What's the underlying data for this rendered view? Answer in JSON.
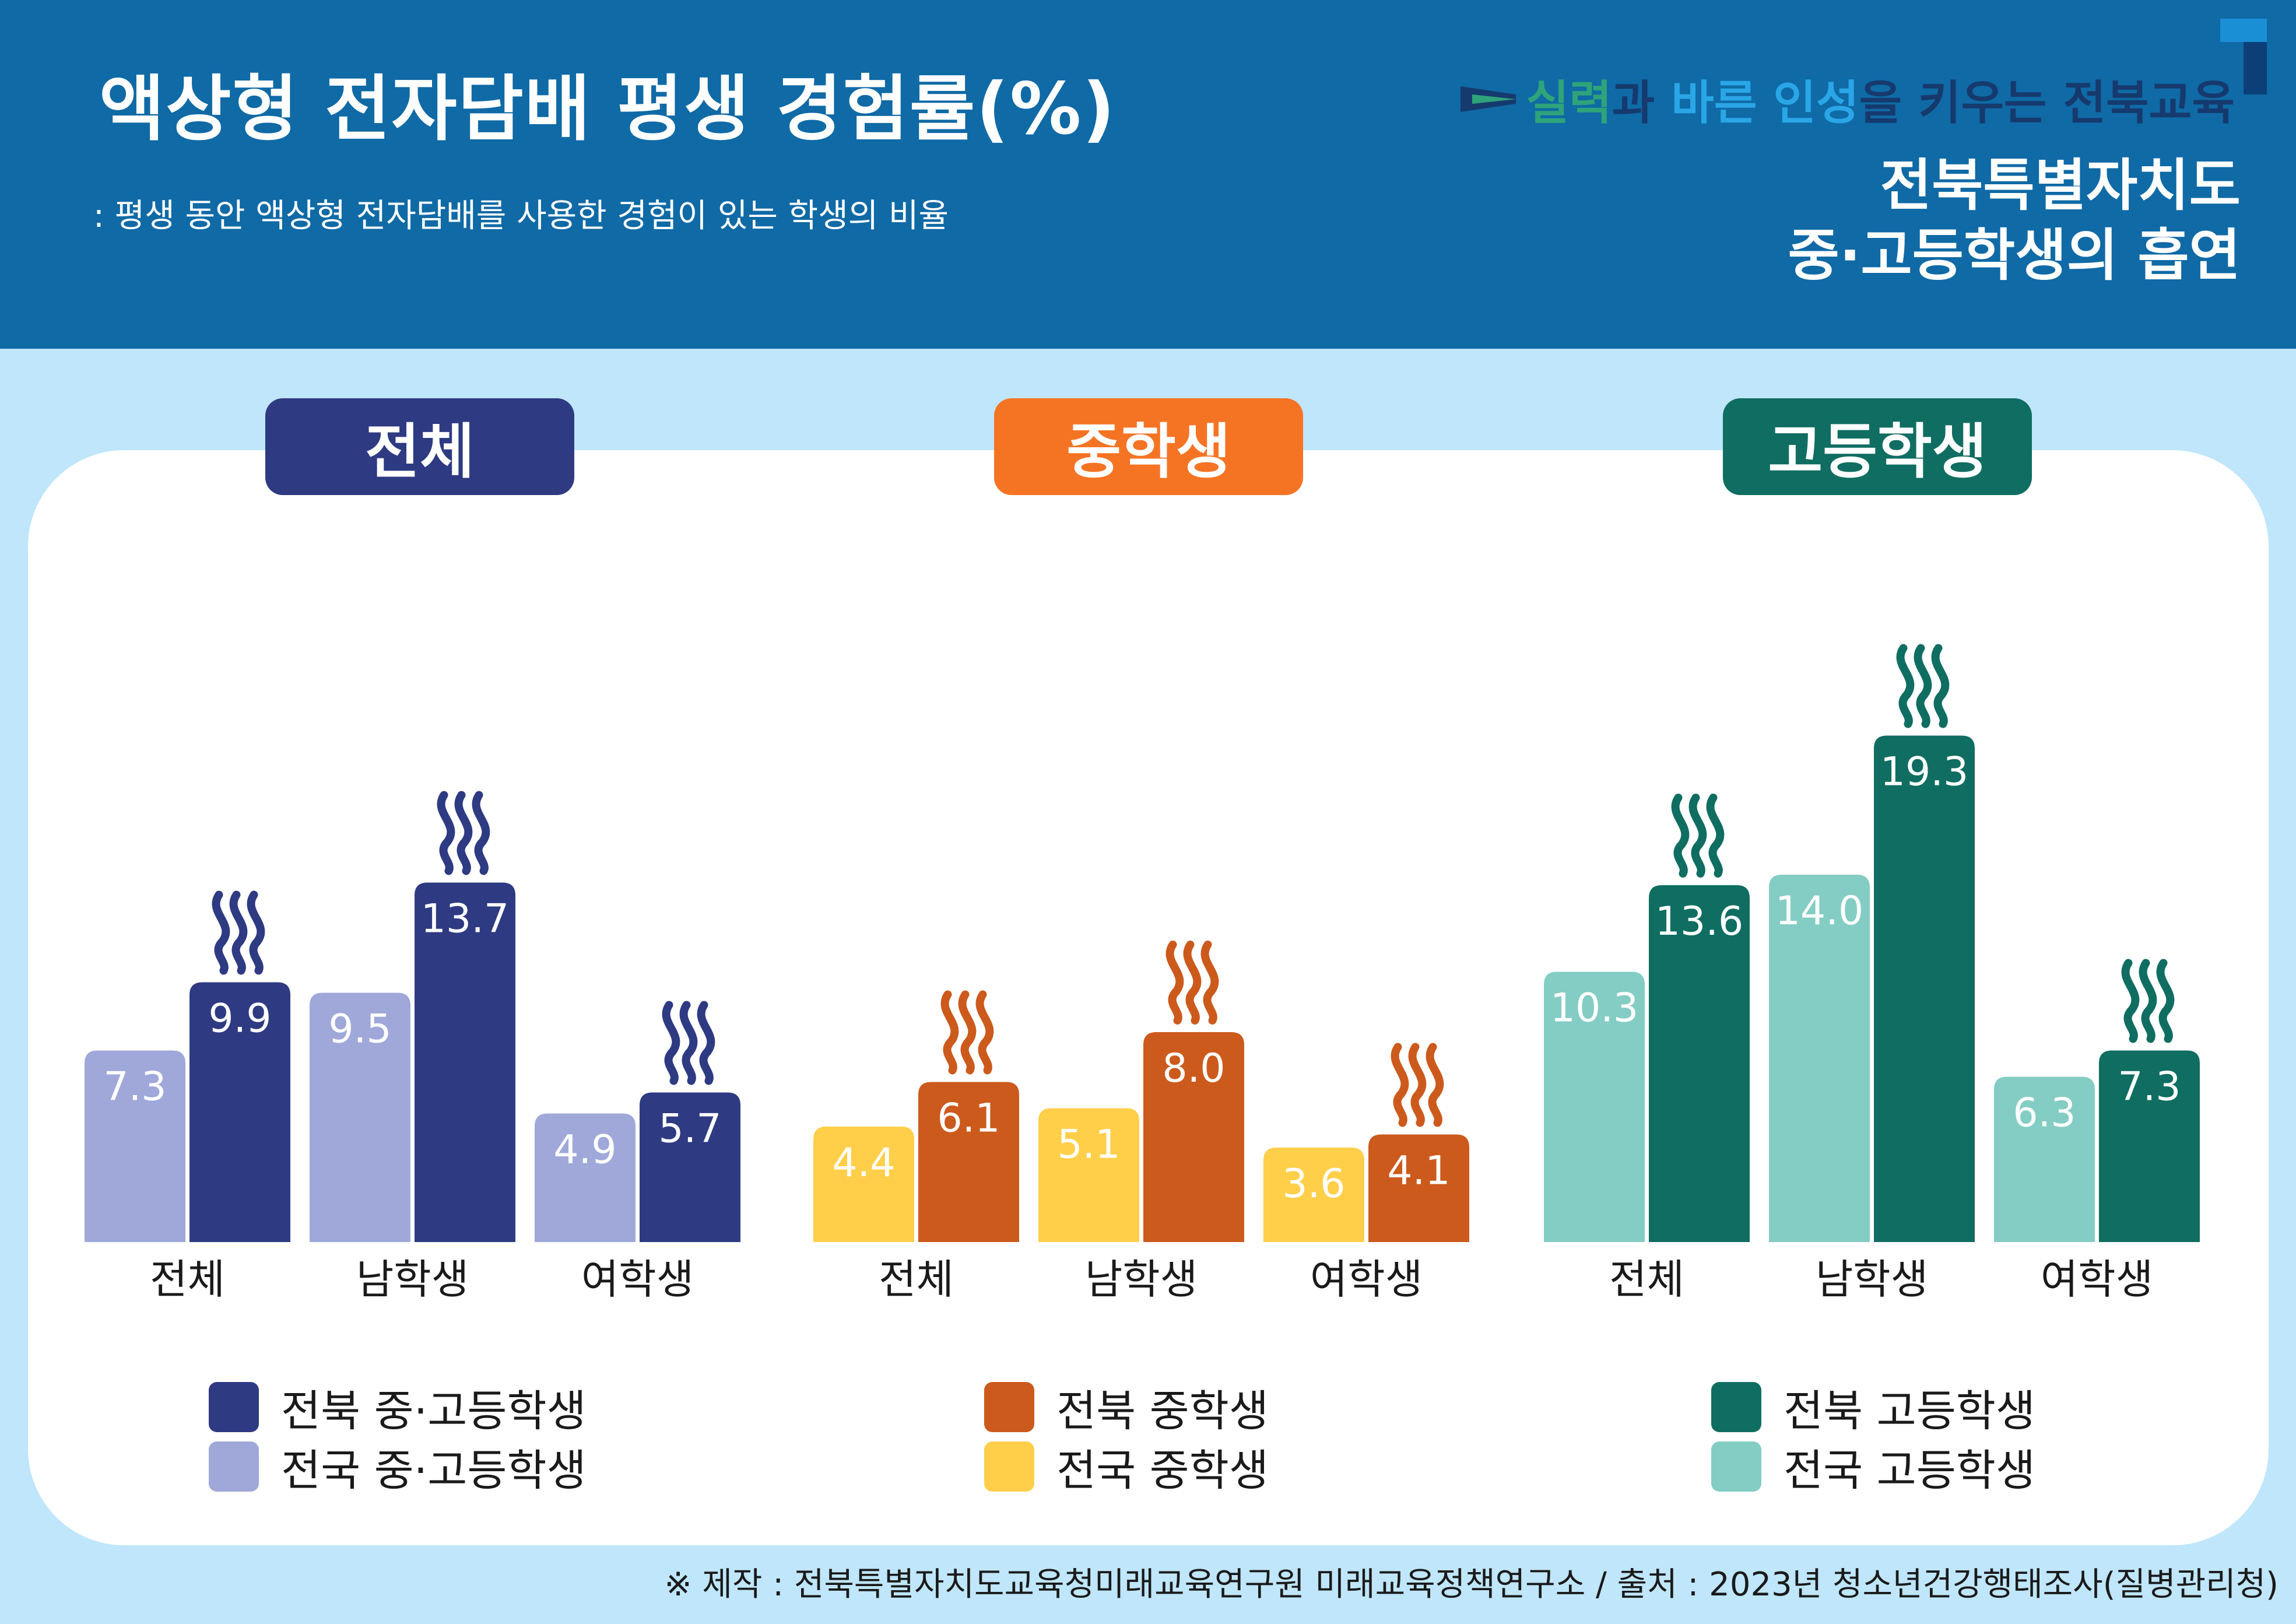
{
  "header": {
    "title": "액상형 전자담배 평생 경험률(%)",
    "subtitle": ": 평생 동안 액상형 전자담배를 사용한 경험이 있는 학생의 비율",
    "slogan": {
      "part1": "실력",
      "part2": "과 ",
      "part3": "바른 인성",
      "part4": "을 키우는 전북교육"
    },
    "org_line1": "전북특별자치도",
    "org_line2": "중·고등학생의 흡연"
  },
  "colors": {
    "header_bg": "#0f6aa6",
    "page_bg": "#bfe6fb",
    "total_jeonbuk": "#2e3a82",
    "total_national": "#9fa8d9",
    "middle_jeonbuk": "#cc5a1c",
    "middle_national": "#ffcf4a",
    "high_jeonbuk": "#106d61",
    "high_national": "#84cdc4"
  },
  "chart_data": [
    {
      "type": "bar",
      "title": "전체",
      "categories": [
        "전체",
        "남학생",
        "여학생"
      ],
      "series": [
        {
          "name": "전국 중·고등학생",
          "values": [
            7.3,
            9.5,
            4.9
          ],
          "color": "#9fa8d9"
        },
        {
          "name": "전북 중·고등학생",
          "values": [
            9.9,
            13.7,
            5.7
          ],
          "color": "#2e3a82"
        }
      ],
      "ylim": [
        0,
        20
      ],
      "grid": false,
      "legend": "bottom"
    },
    {
      "type": "bar",
      "title": "중학생",
      "categories": [
        "전체",
        "남학생",
        "여학생"
      ],
      "series": [
        {
          "name": "전국 중학생",
          "values": [
            4.4,
            5.1,
            3.6
          ],
          "color": "#ffcf4a"
        },
        {
          "name": "전북 중학생",
          "values": [
            6.1,
            8.0,
            4.1
          ],
          "color": "#cc5a1c"
        }
      ],
      "ylim": [
        0,
        20
      ],
      "grid": false,
      "legend": "bottom"
    },
    {
      "type": "bar",
      "title": "고등학생",
      "categories": [
        "전체",
        "남학생",
        "여학생"
      ],
      "series": [
        {
          "name": "전국 고등학생",
          "values": [
            10.3,
            14.0,
            6.3
          ],
          "color": "#84cdc4"
        },
        {
          "name": "전북 고등학생",
          "values": [
            13.6,
            19.3,
            7.3
          ],
          "color": "#106d61"
        }
      ],
      "ylim": [
        0,
        20
      ],
      "grid": false,
      "legend": "bottom"
    }
  ],
  "legends": [
    {
      "jeonbuk": "전북 중·고등학생",
      "national": "전국 중·고등학생"
    },
    {
      "jeonbuk": "전북 중학생",
      "national": "전국 중학생"
    },
    {
      "jeonbuk": "전북 고등학생",
      "national": "전국 고등학생"
    }
  ],
  "footer": {
    "source": "※ 제작 : 전북특별자치도교육청미래교육연구원 미래교육정책연구소 / 출처 : 2023년 청소년건강행태조사(질병관리청)"
  }
}
